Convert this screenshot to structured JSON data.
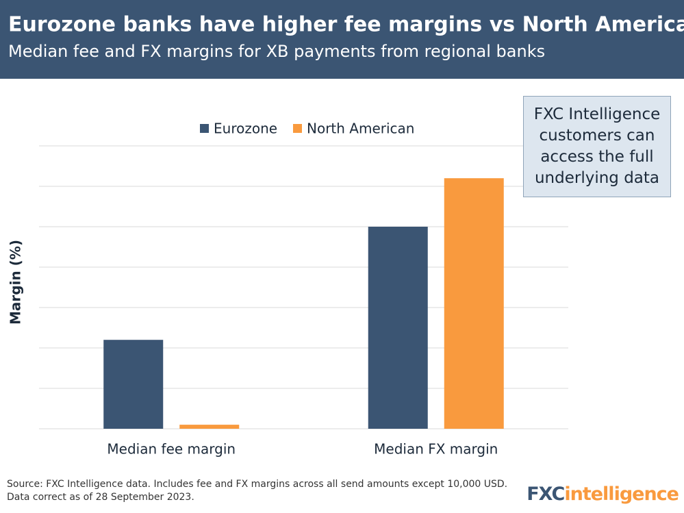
{
  "chart_data": {
    "type": "bar",
    "title": "Eurozone banks have higher fee margins vs North American banks",
    "subtitle": "Median fee and FX margins for XB payments from regional banks",
    "y_label": "Margin (%)",
    "categories": [
      "Median fee margin",
      "Median FX margin"
    ],
    "series": [
      {
        "name": "Eurozone",
        "color": "#3b5573",
        "values": [
          2.2,
          5.0
        ]
      },
      {
        "name": "North American",
        "color": "#f99a3e",
        "values": [
          0.1,
          6.2
        ]
      }
    ],
    "ylim": [
      0,
      7
    ],
    "grid_lines": [
      0,
      1,
      2,
      3,
      4,
      5,
      6,
      7
    ],
    "grid": true,
    "legend": "top"
  },
  "callout": "FXC Intelligence customers can access the full underlying data",
  "source": "Source: FXC Intelligence data. Includes fee and FX margins across all send amounts except 10,000 USD. Data correct as of 28 September 2023.",
  "logo": [
    "FXC",
    "intelligence"
  ]
}
